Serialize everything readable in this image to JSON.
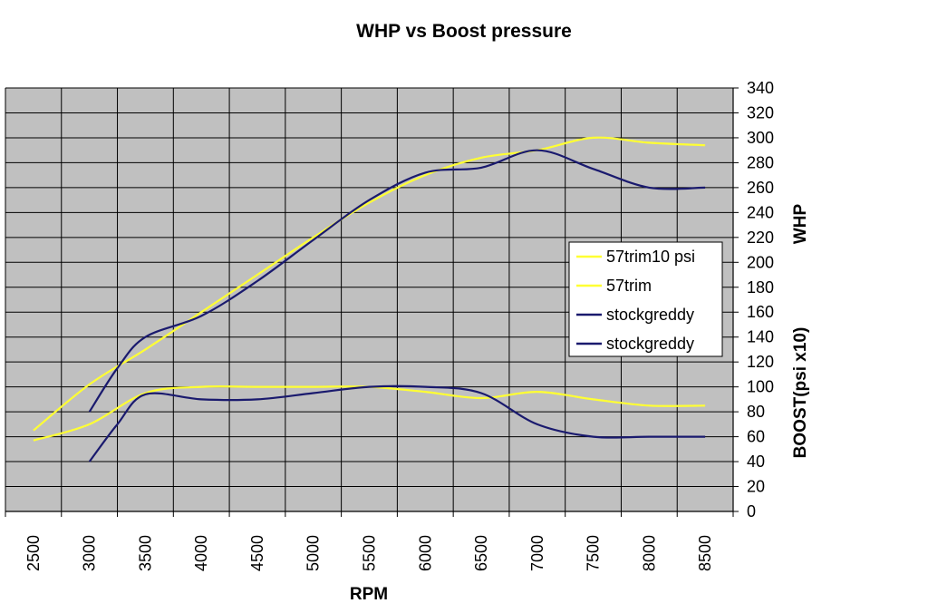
{
  "chart_data": {
    "type": "line",
    "title": "WHP vs Boost pressure",
    "xlabel": "RPM",
    "ylabel_right_top": "WHP",
    "ylabel_right_bottom": "BOOST(psi x10)",
    "categories": [
      "2500",
      "3000",
      "3500",
      "4000",
      "4500",
      "5000",
      "5500",
      "6000",
      "6500",
      "7000",
      "7500",
      "8000",
      "8500"
    ],
    "xlim": [
      2250,
      8750
    ],
    "ylim": [
      0,
      340
    ],
    "y_ticks": [
      "0",
      "20",
      "40",
      "60",
      "80",
      "100",
      "120",
      "140",
      "160",
      "180",
      "200",
      "220",
      "240",
      "260",
      "280",
      "300",
      "320",
      "340"
    ],
    "grid": true,
    "plot_background": "#c0c0c0",
    "legend_position": "right",
    "series": [
      {
        "name": "57trim10 psi",
        "color": "#ffff33",
        "points": [
          [
            2500,
            65
          ],
          [
            3000,
            102
          ],
          [
            3500,
            130
          ],
          [
            4000,
            160
          ],
          [
            4500,
            190
          ],
          [
            5000,
            220
          ],
          [
            5500,
            248
          ],
          [
            6000,
            270
          ],
          [
            6500,
            284
          ],
          [
            7000,
            290
          ],
          [
            7500,
            300
          ],
          [
            8000,
            296
          ],
          [
            8500,
            294
          ]
        ]
      },
      {
        "name": "57trim",
        "color": "#ffff33",
        "points": [
          [
            2500,
            57
          ],
          [
            3000,
            70
          ],
          [
            3500,
            95
          ],
          [
            4000,
            100
          ],
          [
            4500,
            100
          ],
          [
            5000,
            100
          ],
          [
            5500,
            100
          ],
          [
            6000,
            96
          ],
          [
            6500,
            91
          ],
          [
            7000,
            96
          ],
          [
            7500,
            90
          ],
          [
            8000,
            85
          ],
          [
            8500,
            85
          ]
        ]
      },
      {
        "name": "stockgreddy",
        "color": "#1a1a6e",
        "points": [
          [
            3000,
            80
          ],
          [
            3250,
            115
          ],
          [
            3500,
            140
          ],
          [
            4000,
            157
          ],
          [
            4500,
            185
          ],
          [
            5000,
            218
          ],
          [
            5500,
            250
          ],
          [
            6000,
            272
          ],
          [
            6500,
            276
          ],
          [
            7000,
            290
          ],
          [
            7500,
            275
          ],
          [
            8000,
            260
          ],
          [
            8500,
            260
          ]
        ]
      },
      {
        "name": "stockgreddy",
        "color": "#1a1a6e",
        "points": [
          [
            3000,
            40
          ],
          [
            3250,
            70
          ],
          [
            3500,
            94
          ],
          [
            4000,
            90
          ],
          [
            4500,
            90
          ],
          [
            5000,
            95
          ],
          [
            5500,
            100
          ],
          [
            6000,
            100
          ],
          [
            6500,
            95
          ],
          [
            7000,
            70
          ],
          [
            7500,
            60
          ],
          [
            8000,
            60
          ],
          [
            8500,
            60
          ]
        ]
      }
    ]
  }
}
